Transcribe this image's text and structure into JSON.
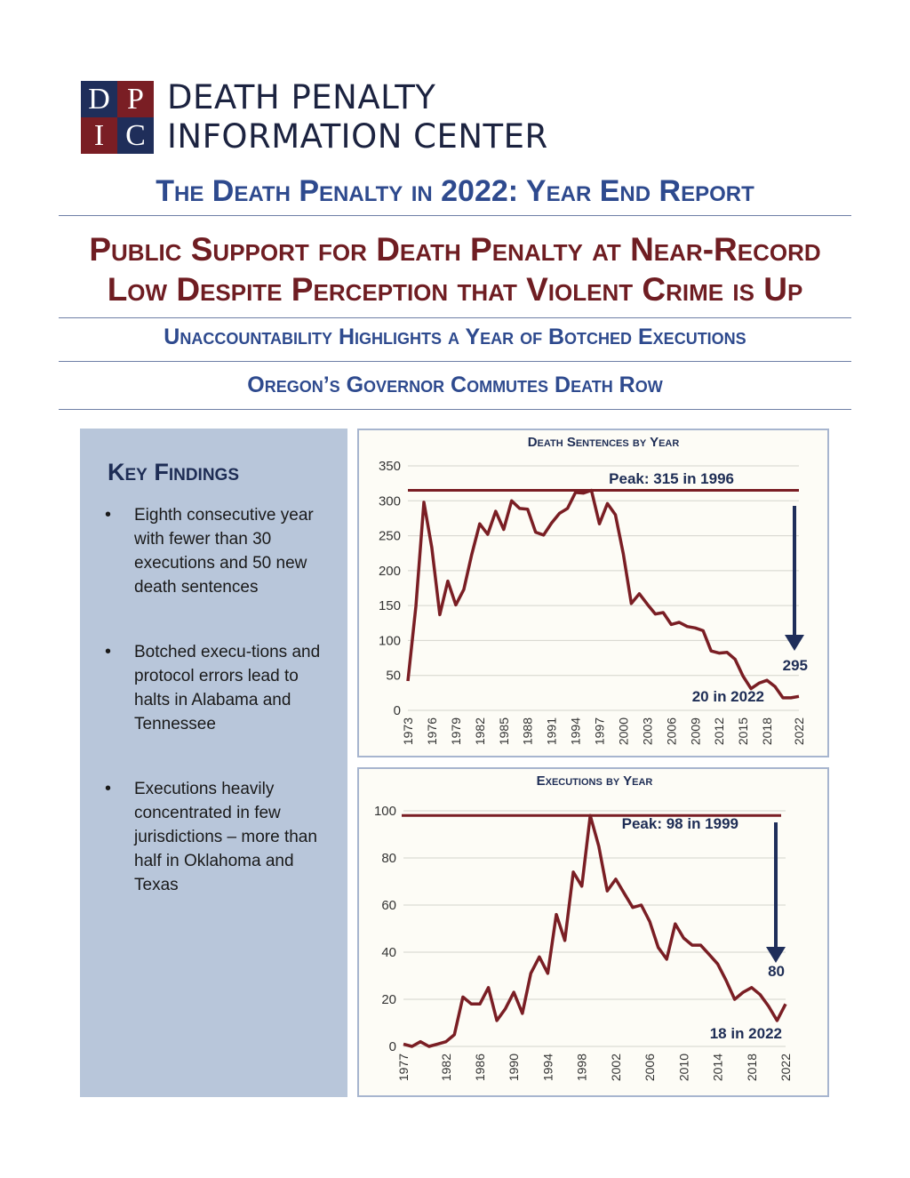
{
  "logo": {
    "letters": [
      "D",
      "P",
      "I",
      "C"
    ]
  },
  "organization": {
    "line1": "DEATH PENALTY",
    "line2": "INFORMATION CENTER"
  },
  "report_title": "The Death Penalty in 2022: Year End Report",
  "headline": {
    "line1": "Public Support for Death Penalty at Near-Record",
    "line2": "Low Despite Perception that Violent Crime is Up"
  },
  "subheads": [
    "Unaccountability Highlights a Year of Botched Executions",
    "Oregon’s Governor Commutes Death Row"
  ],
  "key_findings": {
    "title": "Key Findings",
    "items": [
      "Eighth consecutive year with fewer than 30 executions and 50 new death sentences",
      "Botched execu-tions and protocol errors lead to halts in Alabama and Tennessee",
      "Executions heavily concentrated in few jurisdictions – more than half in Oklahoma and Texas"
    ]
  },
  "colors": {
    "navy": "#1f2e5a",
    "maroon": "#7a1e24",
    "accent_blue": "#2e4a8e",
    "panel": "#b8c6da",
    "chart_bg": "#fdfcf6"
  },
  "chart_data": [
    {
      "type": "line",
      "title": "Death Sentences by Year",
      "xlabel": "",
      "ylabel": "",
      "ylim": [
        0,
        350
      ],
      "yticks": [
        0,
        50,
        100,
        150,
        200,
        250,
        300,
        350
      ],
      "xticks": [
        1973,
        1976,
        1979,
        1982,
        1985,
        1988,
        1991,
        1994,
        1997,
        2000,
        2003,
        2006,
        2009,
        2012,
        2015,
        2018,
        2022
      ],
      "grid": true,
      "x": [
        1973,
        1974,
        1975,
        1976,
        1977,
        1978,
        1979,
        1980,
        1981,
        1982,
        1983,
        1984,
        1985,
        1986,
        1987,
        1988,
        1989,
        1990,
        1991,
        1992,
        1993,
        1994,
        1995,
        1996,
        1997,
        1998,
        1999,
        2000,
        2001,
        2002,
        2003,
        2004,
        2005,
        2006,
        2007,
        2008,
        2009,
        2010,
        2011,
        2012,
        2013,
        2014,
        2015,
        2016,
        2017,
        2018,
        2019,
        2020,
        2021,
        2022
      ],
      "y": [
        42,
        149,
        298,
        233,
        137,
        185,
        151,
        173,
        223,
        267,
        252,
        285,
        259,
        300,
        289,
        288,
        255,
        251,
        268,
        282,
        289,
        312,
        311,
        315,
        267,
        296,
        280,
        224,
        153,
        167,
        152,
        138,
        140,
        123,
        126,
        120,
        118,
        114,
        85,
        82,
        83,
        73,
        49,
        31,
        39,
        43,
        34,
        18,
        18,
        20
      ],
      "peak": {
        "value": 315,
        "label": "Peak: 315 in 1996"
      },
      "annotations": {
        "drop_label": "295",
        "latest_label": "20 in 2022"
      }
    },
    {
      "type": "line",
      "title": "Executions by Year",
      "xlabel": "",
      "ylabel": "",
      "ylim": [
        0,
        100
      ],
      "yticks": [
        0,
        20,
        40,
        60,
        80,
        100
      ],
      "xticks": [
        1977,
        1982,
        1986,
        1990,
        1994,
        1998,
        2002,
        2006,
        2010,
        2014,
        2018,
        2022
      ],
      "grid": true,
      "x": [
        1977,
        1978,
        1979,
        1980,
        1981,
        1982,
        1983,
        1984,
        1985,
        1986,
        1987,
        1988,
        1989,
        1990,
        1991,
        1992,
        1993,
        1994,
        1995,
        1996,
        1997,
        1998,
        1999,
        2000,
        2001,
        2002,
        2003,
        2004,
        2005,
        2006,
        2007,
        2008,
        2009,
        2010,
        2011,
        2012,
        2013,
        2014,
        2015,
        2016,
        2017,
        2018,
        2019,
        2020,
        2021,
        2022
      ],
      "y": [
        1,
        0,
        2,
        0,
        1,
        2,
        5,
        21,
        18,
        18,
        25,
        11,
        16,
        23,
        14,
        31,
        38,
        31,
        56,
        45,
        74,
        68,
        98,
        85,
        66,
        71,
        65,
        59,
        60,
        53,
        42,
        37,
        52,
        46,
        43,
        43,
        39,
        35,
        28,
        20,
        23,
        25,
        22,
        17,
        11,
        18
      ],
      "peak": {
        "value": 98,
        "label": "Peak: 98 in 1999"
      },
      "annotations": {
        "drop_label": "80",
        "latest_label": "18 in 2022"
      }
    }
  ]
}
